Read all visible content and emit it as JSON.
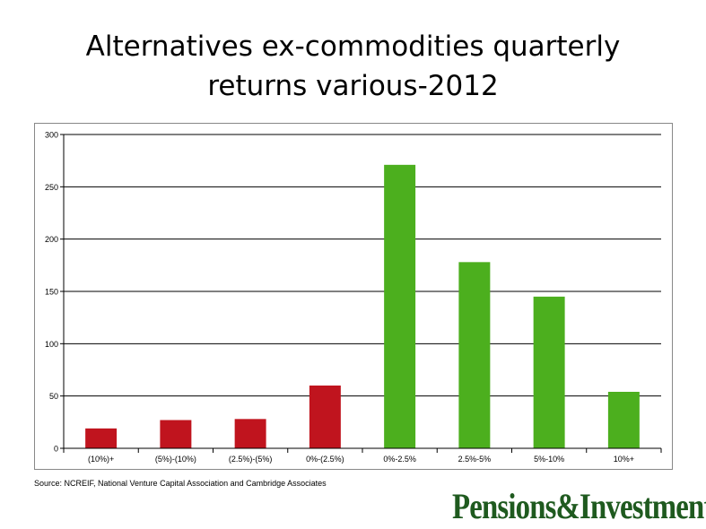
{
  "page": {
    "title_line1": "Alternatives ex-commodities quarterly",
    "title_line2": "returns various-2012",
    "source": "Source: NCREIF, National Venture Capital Association and Cambridge Associates",
    "logo": "Pensions&Investments"
  },
  "colors": {
    "negative": "#c0141e",
    "positive": "#4caf1e",
    "grid": "#000000"
  },
  "chart_data": {
    "type": "bar",
    "title": "Alternatives ex-commodities quarterly returns various-2012",
    "categories": [
      "(10%)+",
      "(5%)-(10%)",
      "(2.5%)-(5%)",
      "0%-(2.5%)",
      "0%-2.5%",
      "2.5%-5%",
      "5%-10%",
      "10%+"
    ],
    "values": [
      19,
      27,
      28,
      60,
      271,
      178,
      145,
      54
    ],
    "bar_colors": [
      "negative",
      "negative",
      "negative",
      "negative",
      "positive",
      "positive",
      "positive",
      "positive"
    ],
    "ylim": [
      0,
      300
    ],
    "yticks": [
      0,
      50,
      100,
      150,
      200,
      250,
      300
    ],
    "xlabel": "",
    "ylabel": "",
    "grid": true,
    "legend": "none"
  }
}
